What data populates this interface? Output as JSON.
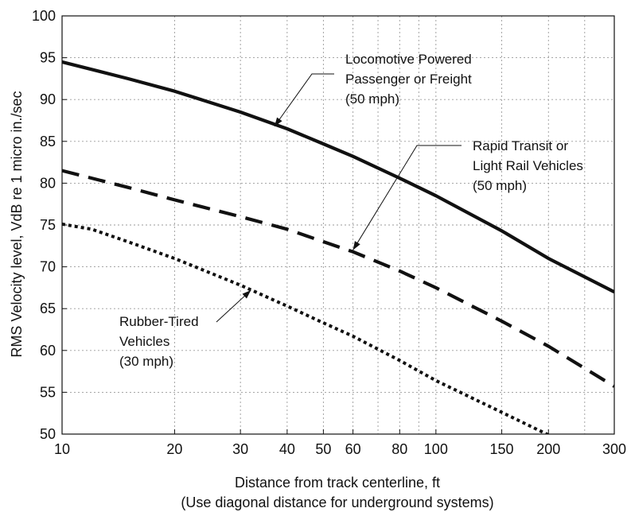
{
  "chart_data": {
    "type": "line",
    "x_scale": "log",
    "grid": true,
    "xlabel_line1": "Distance from track centerline, ft",
    "xlabel_line2": "(Use diagonal distance for underground systems)",
    "ylabel": "RMS Velocity level, VdB re 1 micro in./sec",
    "xlim": [
      10,
      300
    ],
    "ylim": [
      50,
      100
    ],
    "x_ticks": [
      10,
      20,
      30,
      40,
      50,
      60,
      80,
      100,
      150,
      200,
      300
    ],
    "x_tick_labels": [
      "10",
      "20",
      "30",
      "40",
      "50",
      "60",
      "80",
      "100",
      "150",
      "200",
      "300"
    ],
    "y_ticks": [
      50,
      55,
      60,
      65,
      70,
      75,
      80,
      85,
      90,
      95,
      100
    ],
    "y_tick_labels": [
      "50",
      "55",
      "60",
      "65",
      "70",
      "75",
      "80",
      "85",
      "90",
      "95",
      "100"
    ],
    "series": [
      {
        "name": "Locomotive Powered Passenger or Freight (50 mph)",
        "style": "solid",
        "x": [
          10,
          15,
          20,
          30,
          40,
          50,
          60,
          80,
          100,
          150,
          200,
          300
        ],
        "y": [
          94.5,
          92.5,
          91.0,
          88.5,
          86.5,
          84.7,
          83.2,
          80.6,
          78.5,
          74.3,
          71.0,
          67.0
        ]
      },
      {
        "name": "Rapid Transit or Light Rail Vehicles (50 mph)",
        "style": "dashed",
        "x": [
          10,
          15,
          20,
          30,
          40,
          50,
          60,
          80,
          100,
          150,
          200,
          300
        ],
        "y": [
          81.5,
          79.5,
          78.0,
          76.0,
          74.5,
          73.0,
          71.8,
          69.5,
          67.5,
          63.5,
          60.5,
          55.7
        ]
      },
      {
        "name": "Rubber-Tired Vehicles (30 mph)",
        "style": "dotted",
        "x": [
          10,
          12,
          15,
          20,
          30,
          40,
          50,
          60,
          80,
          100,
          150,
          200
        ],
        "y": [
          75.1,
          74.5,
          73.0,
          71.0,
          67.8,
          65.3,
          63.3,
          61.7,
          58.8,
          56.4,
          52.6,
          49.9
        ]
      }
    ],
    "annotations": [
      {
        "id": "loco",
        "lines": [
          "Locomotive Powered",
          "Passenger or Freight",
          "(50 mph)"
        ],
        "arrow_to": [
          37,
          86.8
        ]
      },
      {
        "id": "rapid",
        "lines": [
          "Rapid Transit or",
          "Light Rail Vehicles",
          "(50 mph)"
        ],
        "arrow_to": [
          60,
          72.0
        ]
      },
      {
        "id": "rubber",
        "lines": [
          "Rubber-Tired",
          "Vehicles",
          "(30 mph)"
        ],
        "arrow_to": [
          32,
          67.2
        ]
      }
    ]
  }
}
